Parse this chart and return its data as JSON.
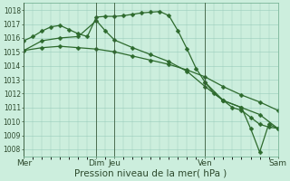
{
  "background_color": "#cceedd",
  "grid_color": "#99ccbb",
  "line_color": "#2d6a2d",
  "ylim": [
    1007.5,
    1018.5
  ],
  "yticks": [
    1008,
    1009,
    1010,
    1011,
    1012,
    1013,
    1014,
    1015,
    1016,
    1017,
    1018
  ],
  "xlabel": "Pression niveau de la mer( hPa )",
  "vline_positions": [
    0,
    48,
    60,
    120,
    168
  ],
  "total_hours": 168,
  "series1_x": [
    0,
    6,
    12,
    18,
    24,
    30,
    36,
    42,
    48,
    54,
    60,
    66,
    72,
    78,
    84,
    90,
    96,
    102,
    108,
    114,
    120,
    126,
    132,
    138,
    144,
    150,
    156,
    162,
    168
  ],
  "series1_y": [
    1015.8,
    1016.1,
    1016.5,
    1016.8,
    1016.9,
    1016.6,
    1016.3,
    1016.1,
    1017.5,
    1017.55,
    1017.55,
    1017.6,
    1017.7,
    1017.8,
    1017.85,
    1017.9,
    1017.6,
    1016.5,
    1015.2,
    1013.8,
    1012.8,
    1012.0,
    1011.5,
    1011.0,
    1010.8,
    1010.3,
    1009.8,
    1009.6,
    1009.5
  ],
  "series2_x": [
    0,
    12,
    24,
    36,
    48,
    54,
    60,
    72,
    84,
    96,
    108,
    120,
    132,
    144,
    156,
    168
  ],
  "series2_y": [
    1015.1,
    1015.8,
    1016.0,
    1016.1,
    1017.25,
    1016.5,
    1015.85,
    1015.3,
    1014.8,
    1014.3,
    1013.6,
    1012.5,
    1011.5,
    1011.0,
    1010.5,
    1009.5
  ],
  "series3_x": [
    0,
    12,
    24,
    36,
    48,
    60,
    72,
    84,
    96,
    108,
    120,
    132,
    144,
    156,
    168
  ],
  "series3_y": [
    1015.1,
    1015.3,
    1015.4,
    1015.3,
    1015.2,
    1015.0,
    1014.7,
    1014.4,
    1014.1,
    1013.7,
    1013.2,
    1012.5,
    1011.9,
    1011.4,
    1010.8
  ],
  "series4_x": [
    120,
    132,
    144,
    150,
    156,
    162,
    168
  ],
  "series4_y": [
    1012.8,
    1011.5,
    1011.0,
    1009.5,
    1007.8,
    1009.8,
    1009.5
  ],
  "xtick_positions": [
    0,
    48,
    60,
    120,
    168
  ],
  "xtick_labels": [
    "Mer",
    "Dim",
    "Jeu",
    "Ven",
    "Sam"
  ],
  "marker_size": 2.5,
  "linewidth": 0.9,
  "ytick_fontsize": 5.5,
  "xtick_fontsize": 6.5,
  "xlabel_fontsize": 7.5
}
